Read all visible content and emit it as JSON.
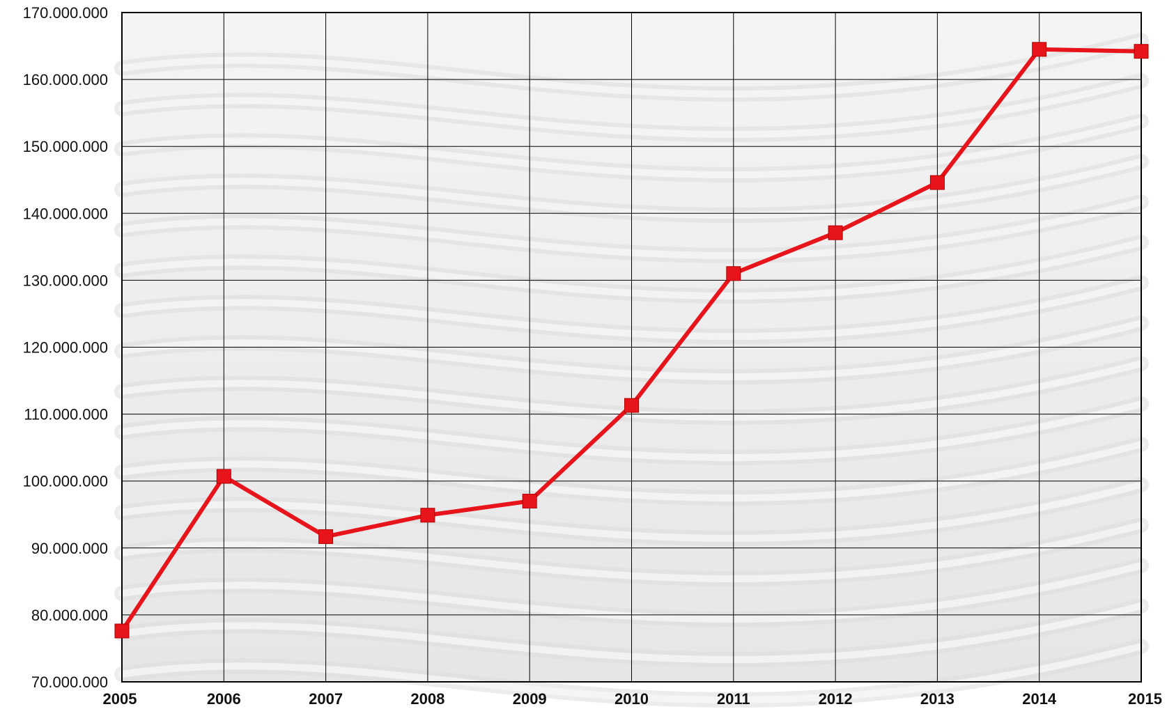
{
  "chart_data": {
    "type": "line",
    "title": "",
    "xlabel": "",
    "ylabel": "",
    "x": [
      "2005",
      "2006",
      "2007",
      "2008",
      "2009",
      "2010",
      "2011",
      "2012",
      "2013",
      "2014",
      "2015"
    ],
    "series": [
      {
        "name": "",
        "color": "#e8141b",
        "marker": "square",
        "values": [
          77600000,
          100700000,
          91700000,
          94900000,
          97000000,
          111300000,
          131000000,
          137100000,
          144600000,
          164500000,
          164200000
        ]
      }
    ],
    "ylim": [
      70000000,
      170000000
    ],
    "y_ticks": [
      70000000,
      80000000,
      90000000,
      100000000,
      110000000,
      120000000,
      130000000,
      140000000,
      150000000,
      160000000,
      170000000
    ],
    "y_tick_labels": [
      "70.000.000",
      "80.000.000",
      "90.000.000",
      "100.000.000",
      "110.000.000",
      "120.000.000",
      "130.000.000",
      "140.000.000",
      "150.000.000",
      "160.000.000",
      "170.000.000"
    ],
    "grid": true,
    "legend": "none",
    "background": "light gray photograph of underfloor heating pipes"
  }
}
